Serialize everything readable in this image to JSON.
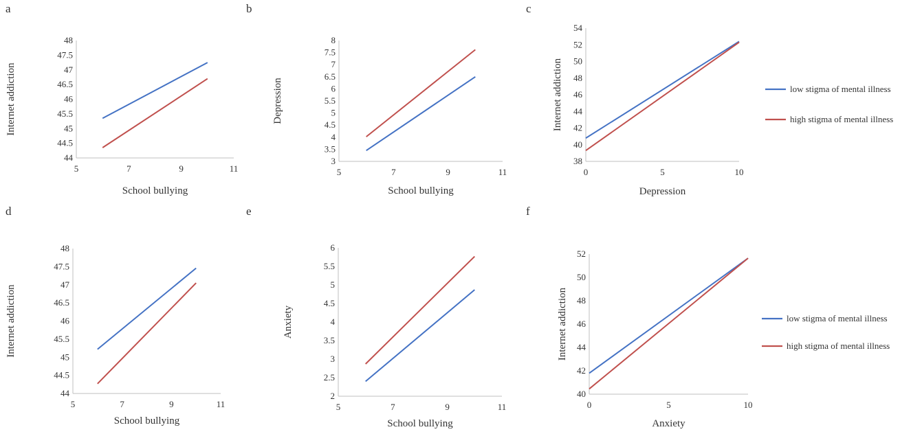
{
  "figure": {
    "colors": {
      "low": "#4472C4",
      "high": "#C0504D"
    }
  },
  "legend_top": {
    "entries": [
      {
        "key": "low",
        "label": "low   stigma of mental illness"
      },
      {
        "key": "high",
        "label": "high  stigma of mental illness"
      }
    ]
  },
  "legend_bottom": {
    "entries": [
      {
        "key": "low",
        "label": "low   stigma of mental illness"
      },
      {
        "key": "high",
        "label": "high   stigma of mental illness"
      }
    ]
  },
  "chart_data": [
    {
      "panel": "a",
      "type": "line",
      "xlabel": "School bullying",
      "ylabel": "Internet addiction",
      "xlim": [
        5,
        11
      ],
      "xticks": [
        "5",
        "7",
        "9",
        "11"
      ],
      "ylim": [
        44,
        48
      ],
      "yticks": [
        "44",
        "44.5",
        "45",
        "45.5",
        "46",
        "46.5",
        "47",
        "47.5",
        "48"
      ],
      "series": [
        {
          "name": "low",
          "x": [
            6,
            10
          ],
          "y": [
            45.35,
            47.25
          ]
        },
        {
          "name": "high",
          "x": [
            6,
            10
          ],
          "y": [
            44.35,
            46.7
          ]
        }
      ]
    },
    {
      "panel": "b",
      "type": "line",
      "xlabel": "School bullying",
      "ylabel": "Depression",
      "xlim": [
        5,
        11
      ],
      "xticks": [
        "5",
        "7",
        "9",
        "11"
      ],
      "ylim": [
        3,
        8
      ],
      "yticks": [
        "3",
        "3.5",
        "4",
        "4.5",
        "5",
        "5.5",
        "6",
        "6.5",
        "7",
        "7.5",
        "8"
      ],
      "series": [
        {
          "name": "low",
          "x": [
            6,
            10
          ],
          "y": [
            3.45,
            6.5
          ]
        },
        {
          "name": "high",
          "x": [
            6,
            10
          ],
          "y": [
            4.02,
            7.62
          ]
        }
      ]
    },
    {
      "panel": "c",
      "type": "line",
      "xlabel": "Depression",
      "ylabel": "Internet addiction",
      "xlim": [
        0,
        10
      ],
      "xticks": [
        "0",
        "5",
        "10"
      ],
      "ylim": [
        38,
        54
      ],
      "yticks": [
        "38",
        "40",
        "42",
        "44",
        "46",
        "48",
        "50",
        "52",
        "54"
      ],
      "series": [
        {
          "name": "low",
          "x": [
            0,
            10
          ],
          "y": [
            40.8,
            52.4
          ]
        },
        {
          "name": "high",
          "x": [
            0,
            10
          ],
          "y": [
            39.3,
            52.3
          ]
        }
      ]
    },
    {
      "panel": "d",
      "type": "line",
      "xlabel": "School bullying",
      "ylabel": "Internet addiction",
      "xlim": [
        5,
        11
      ],
      "xticks": [
        "5",
        "7",
        "9",
        "11"
      ],
      "ylim": [
        44,
        48
      ],
      "yticks": [
        "44",
        "44.5",
        "45",
        "45.5",
        "46",
        "46.5",
        "47",
        "47.5",
        "48"
      ],
      "series": [
        {
          "name": "low",
          "x": [
            6,
            10
          ],
          "y": [
            45.22,
            47.46
          ]
        },
        {
          "name": "high",
          "x": [
            6,
            10
          ],
          "y": [
            44.27,
            47.05
          ]
        }
      ]
    },
    {
      "panel": "e",
      "type": "line",
      "xlabel": "School bullying",
      "ylabel": "Anxiety",
      "xlim": [
        5,
        11
      ],
      "xticks": [
        "5",
        "7",
        "9",
        "11"
      ],
      "ylim": [
        2,
        6
      ],
      "yticks": [
        "2",
        "2.5",
        "3",
        "3.5",
        "4",
        "4.5",
        "5",
        "5.5",
        "6"
      ],
      "series": [
        {
          "name": "low",
          "x": [
            6,
            10
          ],
          "y": [
            2.4,
            4.87
          ]
        },
        {
          "name": "high",
          "x": [
            6,
            10
          ],
          "y": [
            2.87,
            5.77
          ]
        }
      ]
    },
    {
      "panel": "f",
      "type": "line",
      "xlabel": "Anxiety",
      "ylabel": "Internet addiction",
      "xlim": [
        0,
        10
      ],
      "xticks": [
        "0",
        "5",
        "10"
      ],
      "ylim": [
        40,
        52
      ],
      "yticks": [
        "40",
        "42",
        "44",
        "46",
        "48",
        "50",
        "52"
      ],
      "series": [
        {
          "name": "low",
          "x": [
            0,
            10
          ],
          "y": [
            41.8,
            51.65
          ]
        },
        {
          "name": "high",
          "x": [
            0,
            10
          ],
          "y": [
            40.45,
            51.65
          ]
        }
      ]
    }
  ]
}
